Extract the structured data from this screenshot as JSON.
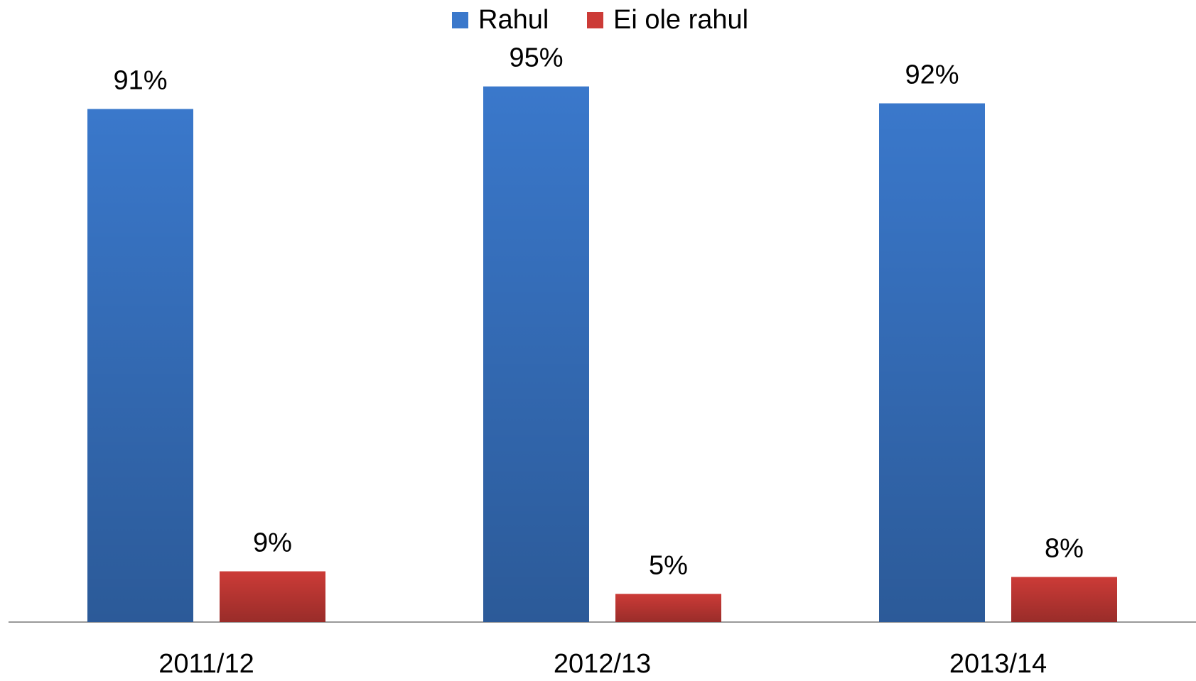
{
  "chart_data": {
    "type": "bar",
    "categories": [
      "2011/12",
      "2012/13",
      "2013/14"
    ],
    "series": [
      {
        "name": "Rahul",
        "color": "#3a78cb",
        "values": [
          91,
          95,
          92
        ],
        "value_labels": [
          "91%",
          "95%",
          "92%"
        ]
      },
      {
        "name": "Ei ole rahul",
        "color": "#cc3b37",
        "values": [
          9,
          5,
          8
        ],
        "value_labels": [
          "9%",
          "5%",
          "8%"
        ]
      }
    ],
    "legend": "top"
  }
}
